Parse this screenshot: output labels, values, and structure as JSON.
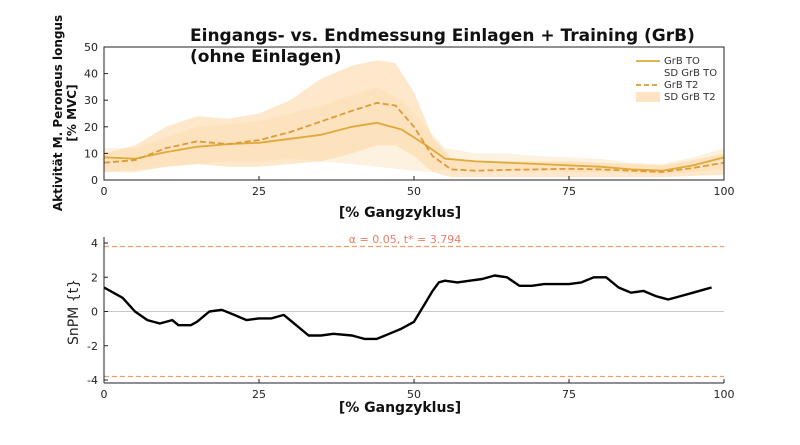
{
  "chart_data": [
    {
      "type": "line",
      "title": "Eingangs- vs. Endmessung Einlagen + Training (GrB)",
      "subtitle": "(ohne Einlagen)",
      "xlabel": "[% Gangzyklus]",
      "ylabel": "Aktivität M. Peroneus longus",
      "ylabel2": "[% MVC]",
      "xlim": [
        0,
        100
      ],
      "ylim": [
        0,
        50
      ],
      "xticks": [
        "0",
        "25",
        "50",
        "75",
        "100"
      ],
      "yticks": [
        "0",
        "10",
        "20",
        "30",
        "40",
        "50"
      ],
      "grid": false,
      "legend_position": "top-right",
      "colors": {
        "to_line": "#e0a93a",
        "to_sd": "#fbe6c4",
        "t2_line": "#dd9a3a",
        "t2_sd": "#fdd9a8"
      },
      "legend": [
        "GrB TO",
        "SD GrB TO",
        "GrB T2",
        "SD GrB T2"
      ],
      "series": [
        {
          "name": "GrB TO",
          "style": "solid",
          "x": [
            0,
            5,
            10,
            15,
            20,
            25,
            30,
            35,
            40,
            44,
            48,
            52,
            55,
            60,
            65,
            70,
            75,
            80,
            85,
            90,
            95,
            100
          ],
          "y": [
            8.5,
            8,
            10.5,
            12.5,
            13.5,
            14,
            15.5,
            17,
            20,
            21.5,
            19,
            13,
            8,
            7,
            6.5,
            6,
            5.5,
            5,
            4,
            3.5,
            5.5,
            8.5
          ]
        },
        {
          "name": "SD GrB TO",
          "style": "band",
          "x": [
            0,
            5,
            10,
            15,
            20,
            25,
            30,
            35,
            40,
            44,
            48,
            52,
            55,
            60,
            65,
            70,
            75,
            80,
            85,
            90,
            95,
            100
          ],
          "lower": [
            3,
            4,
            5,
            6,
            7,
            7,
            8,
            7,
            6,
            5,
            4,
            3,
            4,
            4,
            3.5,
            3.5,
            3,
            3,
            2.5,
            2,
            3,
            4
          ],
          "upper": [
            12,
            12,
            16,
            20,
            21,
            22,
            25,
            28,
            32,
            35,
            30,
            20,
            12,
            10,
            10,
            9,
            8.5,
            8,
            6.5,
            6,
            8.5,
            12
          ]
        },
        {
          "name": "GrB T2",
          "style": "dashed",
          "x": [
            0,
            5,
            10,
            15,
            20,
            25,
            30,
            35,
            40,
            44,
            47,
            50,
            53,
            56,
            60,
            65,
            70,
            75,
            80,
            85,
            90,
            95,
            100
          ],
          "y": [
            6.5,
            7.5,
            12,
            14.5,
            13.5,
            15,
            18,
            22,
            26,
            29,
            28,
            20,
            9,
            4,
            3.5,
            3.8,
            4,
            4.2,
            4,
            3.5,
            3,
            4.5,
            6.5
          ]
        },
        {
          "name": "SD GrB T2",
          "style": "band",
          "x": [
            0,
            5,
            10,
            15,
            20,
            25,
            30,
            35,
            40,
            44,
            47,
            50,
            53,
            56,
            60,
            65,
            70,
            75,
            80,
            85,
            90,
            95,
            100
          ],
          "lower": [
            3,
            3,
            5,
            6,
            5,
            5,
            6,
            7,
            10,
            13,
            13,
            9,
            3,
            1,
            1,
            1,
            1,
            1,
            1,
            1,
            1,
            1.5,
            2
          ],
          "upper": [
            10,
            13,
            20,
            24,
            23,
            25,
            30,
            38,
            43,
            45,
            44,
            33,
            16,
            8,
            7,
            7,
            7,
            7,
            6.5,
            6,
            5.5,
            7.5,
            10
          ]
        }
      ]
    },
    {
      "type": "line",
      "xlabel": "[% Gangzyklus]",
      "ylabel": "SnPM {t}",
      "xlim": [
        0,
        100
      ],
      "ylim": [
        -4,
        4
      ],
      "xticks": [
        "0",
        "25",
        "50",
        "75",
        "100"
      ],
      "yticks": [
        "-4",
        "-2",
        "0",
        "2",
        "4"
      ],
      "threshold": 3.794,
      "threshold_label": "α = 0.05, t* = 3.794",
      "colors": {
        "line": "#000000",
        "threshold": "#e8a070",
        "zero": "#c8c8c8"
      },
      "series": [
        {
          "x": [
            0,
            3,
            5,
            7,
            9,
            11,
            12,
            14,
            15,
            17,
            19,
            21,
            23,
            25,
            27,
            29,
            31,
            33,
            35,
            37,
            40,
            42,
            44,
            46,
            48,
            50,
            51,
            52,
            53,
            54,
            55,
            57,
            59,
            61,
            63,
            65,
            67,
            69,
            71,
            73,
            75,
            77,
            79,
            81,
            83,
            85,
            87,
            89,
            90,
            91,
            93,
            95,
            97,
            98
          ],
          "y": [
            1.4,
            0.8,
            0,
            -0.5,
            -0.7,
            -0.5,
            -0.8,
            -0.8,
            -0.6,
            0,
            0.1,
            -0.2,
            -0.5,
            -0.4,
            -0.4,
            -0.2,
            -0.8,
            -1.4,
            -1.4,
            -1.3,
            -1.4,
            -1.6,
            -1.6,
            -1.3,
            -1.0,
            -0.6,
            0,
            0.6,
            1.2,
            1.7,
            1.8,
            1.7,
            1.8,
            1.9,
            2.1,
            2.0,
            1.5,
            1.5,
            1.6,
            1.6,
            1.6,
            1.7,
            2.0,
            2.0,
            1.4,
            1.1,
            1.2,
            0.9,
            0.8,
            0.7,
            0.9,
            1.1,
            1.3,
            1.4
          ]
        }
      ]
    }
  ]
}
